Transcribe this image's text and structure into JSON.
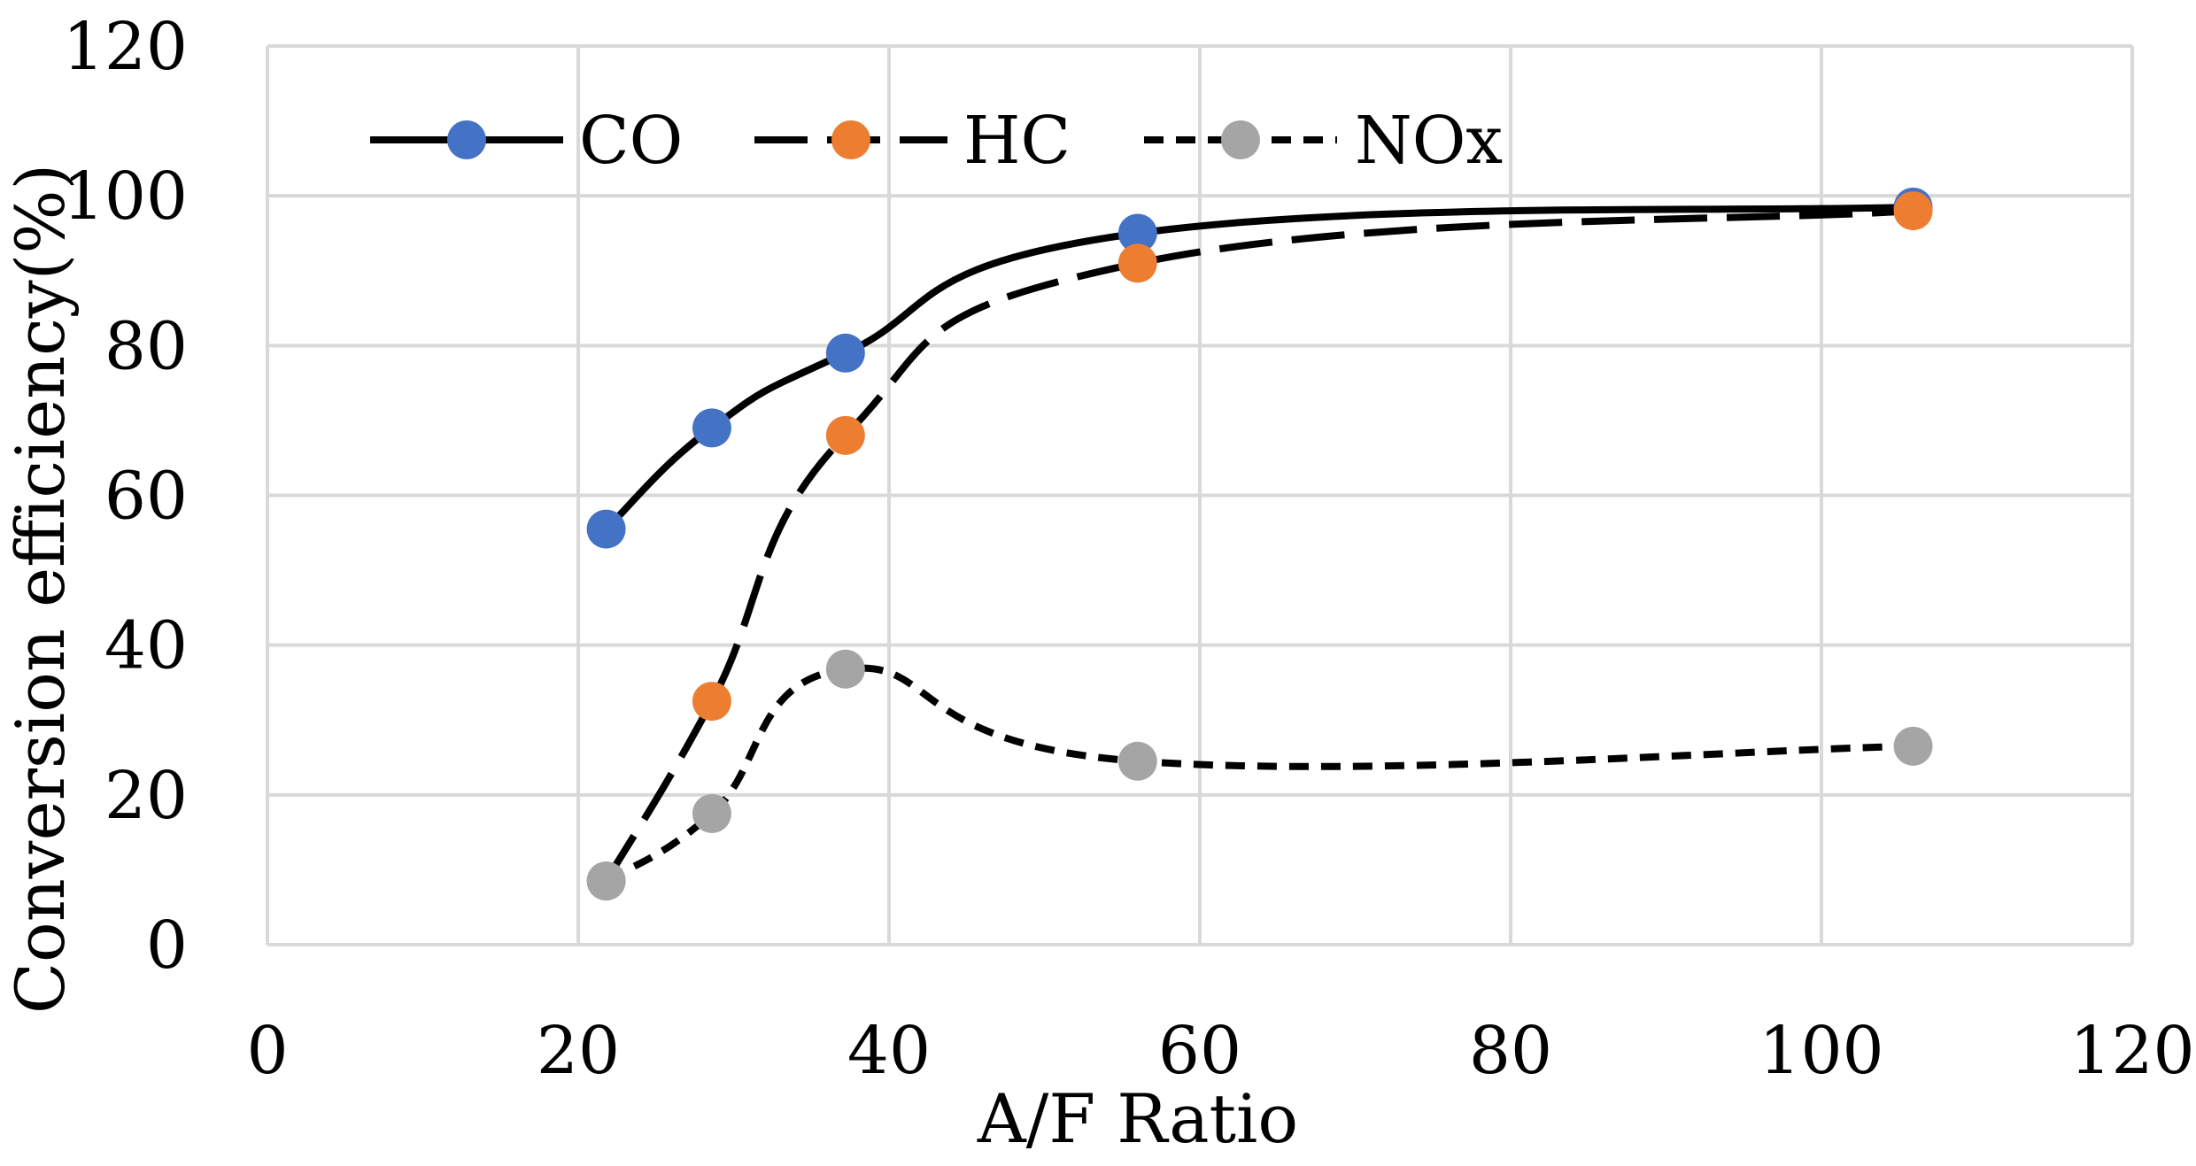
{
  "chart_data": {
    "type": "line",
    "title": "",
    "xlabel": "A/F Ratio",
    "ylabel": "Conversion efficiency(%)",
    "xlim": [
      0,
      120
    ],
    "ylim": [
      0,
      120
    ],
    "xticks": [
      0,
      20,
      40,
      60,
      80,
      100,
      120
    ],
    "yticks": [
      0,
      20,
      40,
      60,
      80,
      100,
      120
    ],
    "grid": true,
    "legend_position": "top-left",
    "x": [
      21.8,
      28.6,
      37.2,
      56.0,
      105.9
    ],
    "series": [
      {
        "name": "CO",
        "values": [
          55.5,
          69.0,
          79.0,
          95.0,
          98.5
        ],
        "marker_color": "#4472C4",
        "line_color": "#000000",
        "line_style": "solid"
      },
      {
        "name": "HC",
        "values": [
          8.5,
          32.5,
          68.0,
          91.0,
          98.0
        ],
        "marker_color": "#ED7D31",
        "line_color": "#000000",
        "line_style": "long-dash"
      },
      {
        "name": "NOx",
        "values": [
          8.5,
          17.5,
          36.8,
          24.5,
          26.5
        ],
        "marker_color": "#A5A5A5",
        "line_color": "#000000",
        "line_style": "short-dash"
      }
    ]
  },
  "colors": {
    "grid": "#D9D9D9",
    "text": "#000000",
    "background": "#FFFFFF"
  }
}
